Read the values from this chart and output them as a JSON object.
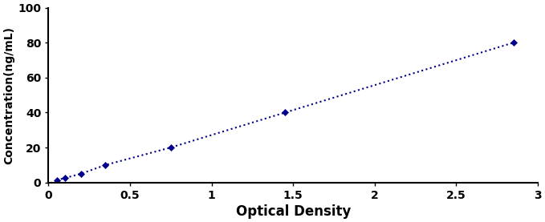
{
  "x": [
    0.05,
    0.1,
    0.2,
    0.35,
    0.75,
    1.45,
    2.85
  ],
  "y": [
    1.25,
    2.5,
    5.0,
    10.0,
    20.0,
    40.0,
    80.0
  ],
  "line_color": "#00008B",
  "marker": "D",
  "marker_size": 4,
  "linestyle": ":",
  "linewidth": 1.5,
  "xlabel": "Optical Density",
  "ylabel": "Concentration(ng/mL)",
  "xlim": [
    0,
    3
  ],
  "ylim": [
    0,
    100
  ],
  "xticks": [
    0,
    0.5,
    1,
    1.5,
    2,
    2.5,
    3
  ],
  "xtick_labels": [
    "0",
    "0.5",
    "1",
    "1.5",
    "2",
    "2.5",
    "3"
  ],
  "yticks": [
    0,
    20,
    40,
    60,
    80,
    100
  ],
  "ytick_labels": [
    "0",
    "20",
    "40",
    "60",
    "80",
    "100"
  ],
  "xlabel_fontsize": 12,
  "ylabel_fontsize": 10,
  "tick_fontsize": 10,
  "xlabel_fontweight": "bold",
  "ylabel_fontweight": "bold",
  "tick_fontweight": "bold",
  "spine_linewidth": 1.5,
  "figure_width": 6.79,
  "figure_height": 2.77,
  "dpi": 100
}
